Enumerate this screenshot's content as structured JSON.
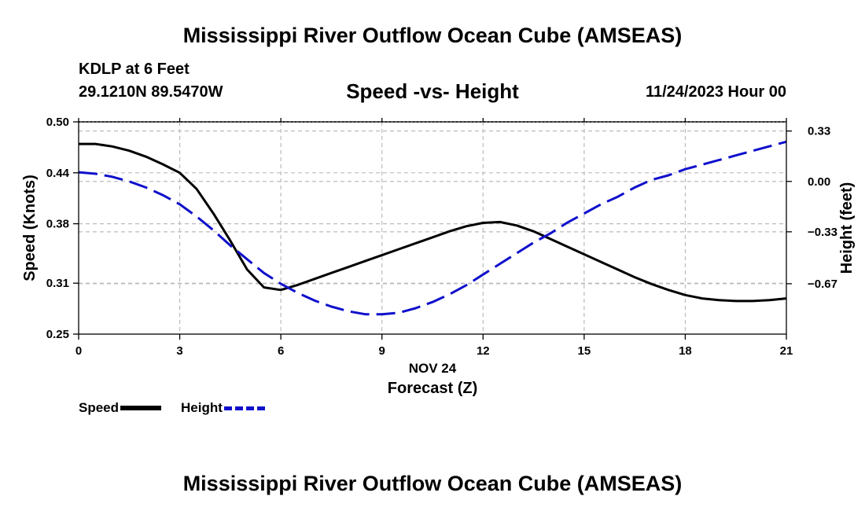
{
  "header": {
    "title": "Mississippi River Outflow Ocean Cube (AMSEAS)",
    "station": "KDLP at 6 Feet",
    "coords": "29.1210N  89.5470W",
    "subtitle": "Speed -vs- Height",
    "datetime": "11/24/2023 Hour 00"
  },
  "footer": {
    "title": "Mississippi River Outflow Ocean Cube (AMSEAS)"
  },
  "legend": {
    "speed_label": "Speed",
    "height_label": "Height"
  },
  "colors": {
    "speed": "#000000",
    "height": "#1010cc",
    "grid": "#bbbbbb"
  },
  "chart_data": {
    "type": "line",
    "title": "Speed -vs- Height",
    "xlabel": "Forecast (Z)",
    "xlabel_date": "NOV 24",
    "ylabel": "Speed (Knots)",
    "y2label": "Height (feet)",
    "xlim": [
      0,
      21
    ],
    "ylim": [
      0.25,
      0.5
    ],
    "y2lim": [
      -1.0,
      0.39
    ],
    "x_ticks": [
      0,
      3,
      6,
      9,
      12,
      15,
      18,
      21
    ],
    "y_ticks": [
      0.25,
      0.31,
      0.38,
      0.44,
      0.5
    ],
    "y_tick_labels": [
      "0.25",
      "0.31",
      "0.38",
      "0.44",
      "0.50"
    ],
    "y2_ticks": [
      -0.67,
      -0.33,
      0.0,
      0.33
    ],
    "y2_tick_labels": [
      "−0.67",
      "−0.33",
      "0.00",
      "0.33"
    ],
    "grid": true,
    "series": [
      {
        "name": "Speed",
        "axis": "left",
        "style": "solid",
        "x": [
          0,
          0.5,
          1,
          1.5,
          2,
          2.5,
          3,
          3.5,
          4,
          4.5,
          5,
          5.5,
          6,
          6.5,
          7,
          7.5,
          8,
          8.5,
          9,
          9.5,
          10,
          10.5,
          11,
          11.5,
          12,
          12.5,
          13,
          13.5,
          14,
          14.5,
          15,
          15.5,
          16,
          16.5,
          17,
          17.5,
          18,
          18.5,
          19,
          19.5,
          20,
          20.5,
          21
        ],
        "values": [
          0.474,
          0.474,
          0.471,
          0.466,
          0.459,
          0.45,
          0.44,
          0.421,
          0.392,
          0.36,
          0.326,
          0.305,
          0.302,
          0.308,
          0.315,
          0.322,
          0.329,
          0.336,
          0.343,
          0.35,
          0.357,
          0.364,
          0.371,
          0.377,
          0.381,
          0.382,
          0.378,
          0.371,
          0.362,
          0.353,
          0.344,
          0.335,
          0.326,
          0.317,
          0.309,
          0.302,
          0.296,
          0.292,
          0.29,
          0.289,
          0.289,
          0.29,
          0.292
        ]
      },
      {
        "name": "Height",
        "axis": "right",
        "style": "dashed",
        "x": [
          0,
          0.5,
          1,
          1.5,
          2,
          2.5,
          3,
          3.5,
          4,
          4.5,
          5,
          5.5,
          6,
          6.5,
          7,
          7.5,
          8,
          8.5,
          9,
          9.5,
          10,
          10.5,
          11,
          11.5,
          12,
          12.5,
          13,
          13.5,
          14,
          14.5,
          15,
          15.5,
          16,
          16.5,
          17,
          17.5,
          18,
          18.5,
          19,
          19.5,
          20,
          20.5,
          21
        ],
        "values": [
          0.06,
          0.05,
          0.03,
          0.0,
          -0.04,
          -0.09,
          -0.15,
          -0.23,
          -0.32,
          -0.42,
          -0.51,
          -0.6,
          -0.67,
          -0.73,
          -0.78,
          -0.82,
          -0.85,
          -0.87,
          -0.87,
          -0.86,
          -0.83,
          -0.79,
          -0.74,
          -0.68,
          -0.61,
          -0.54,
          -0.47,
          -0.4,
          -0.34,
          -0.27,
          -0.21,
          -0.15,
          -0.1,
          -0.04,
          0.01,
          0.04,
          0.08,
          0.11,
          0.14,
          0.17,
          0.2,
          0.23,
          0.26
        ]
      }
    ]
  }
}
